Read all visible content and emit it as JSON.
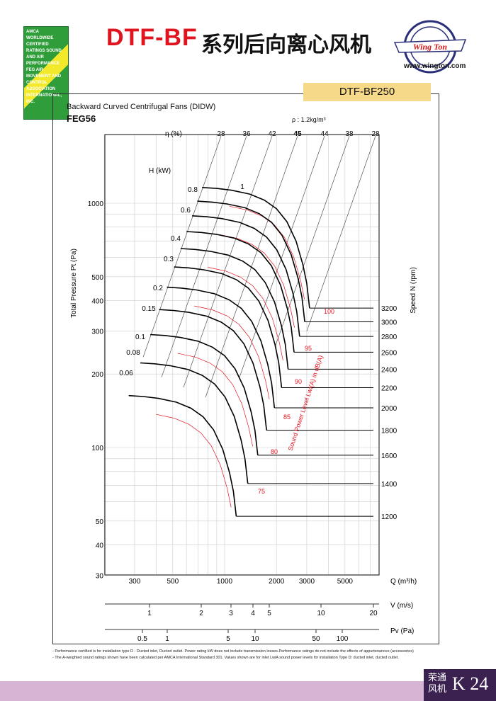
{
  "header": {
    "title_model": "DTF-BF",
    "title_cn": "系列后向离心风机",
    "brand": "Wing Ton",
    "url": "www.wington.com",
    "certification": "AMCA WORLDWIDE CERTIFIED RATINGS SOUND AND AIR PERFORMANCE FEG AIR MOVEMENT AND CONTROL ASSOCIATION INTERNATIONAL, INC."
  },
  "model_tab": "DTF-BF250",
  "subtitle": "Backward Curved Centrifugal Fans (DIDW)",
  "series_code": "FEG56",
  "density": "ρ : 1.2kg/m³",
  "footnotes": [
    "- Performance certified is for installation type D - Ducted inlet, Ducted outlet. Power rating kW does not include transmission losses.Performance ratings do not include the effects of appurtenances (accessories)",
    "- The A-weighted sound ratings shown have been calculated per AMCA International Standard 301. Values shown are for inlet LwiA sound power levels for installation Type D: ducted inlet, ducted outlet."
  ],
  "badge": {
    "cn": "荣通风机",
    "page": "K 24"
  },
  "colors": {
    "red": "#e0141e",
    "tab": "#f7d98a",
    "band": "#d8b4d4",
    "badge": "#3a2150"
  },
  "chart_data": {
    "type": "line",
    "xlabel": "Q (m³/h)",
    "ylabel": "Total Pressure Pt (Pa)",
    "speed_label": "Speed N (rpm)",
    "sound_label": "Sound Power Level Lwi(A) in dB(A)",
    "eta_label": "η (%)",
    "power_label": "H (kW)",
    "xlim": [
      200,
      7900
    ],
    "ylim": [
      30,
      1900
    ],
    "xscale": "log",
    "yscale": "log",
    "grid": true,
    "x_ticks": [
      300,
      500,
      1000,
      2000,
      3000,
      5000
    ],
    "y_ticks": [
      1000,
      500,
      400,
      300,
      200,
      100,
      50,
      40,
      30
    ],
    "efficiency_labels": [
      "28",
      "36",
      "42",
      "45",
      "44",
      "38",
      "28"
    ],
    "speeds": [
      3200,
      3000,
      2800,
      2600,
      2400,
      2200,
      2000,
      1800,
      1600,
      1400,
      1200
    ],
    "base_speed": 3200,
    "base_curve": {
      "Q": [
        740,
        900,
        1100,
        1400,
        1700,
        2000,
        2300,
        2600,
        2850,
        3000,
        3115
      ],
      "P": [
        1160,
        1150,
        1130,
        1090,
        1030,
        950,
        840,
        700,
        560,
        470,
        372
      ]
    },
    "power_labels": [
      "0.06",
      "0.08",
      "0.1",
      "0.15",
      "0.2",
      "0.3",
      "0.4",
      "0.6",
      "0.8",
      "1"
    ],
    "sound_labels": [
      "75",
      "80",
      "85",
      "90",
      "95",
      "100"
    ],
    "velocity_axis": {
      "label": "V (m/s)",
      "ticks": [
        "1",
        "2",
        "3",
        "4",
        "5",
        "10",
        "20"
      ]
    },
    "pv_axis": {
      "label": "Pv (Pa)",
      "ticks": [
        "0.5",
        "1",
        "5",
        "10",
        "50",
        "100"
      ]
    }
  }
}
